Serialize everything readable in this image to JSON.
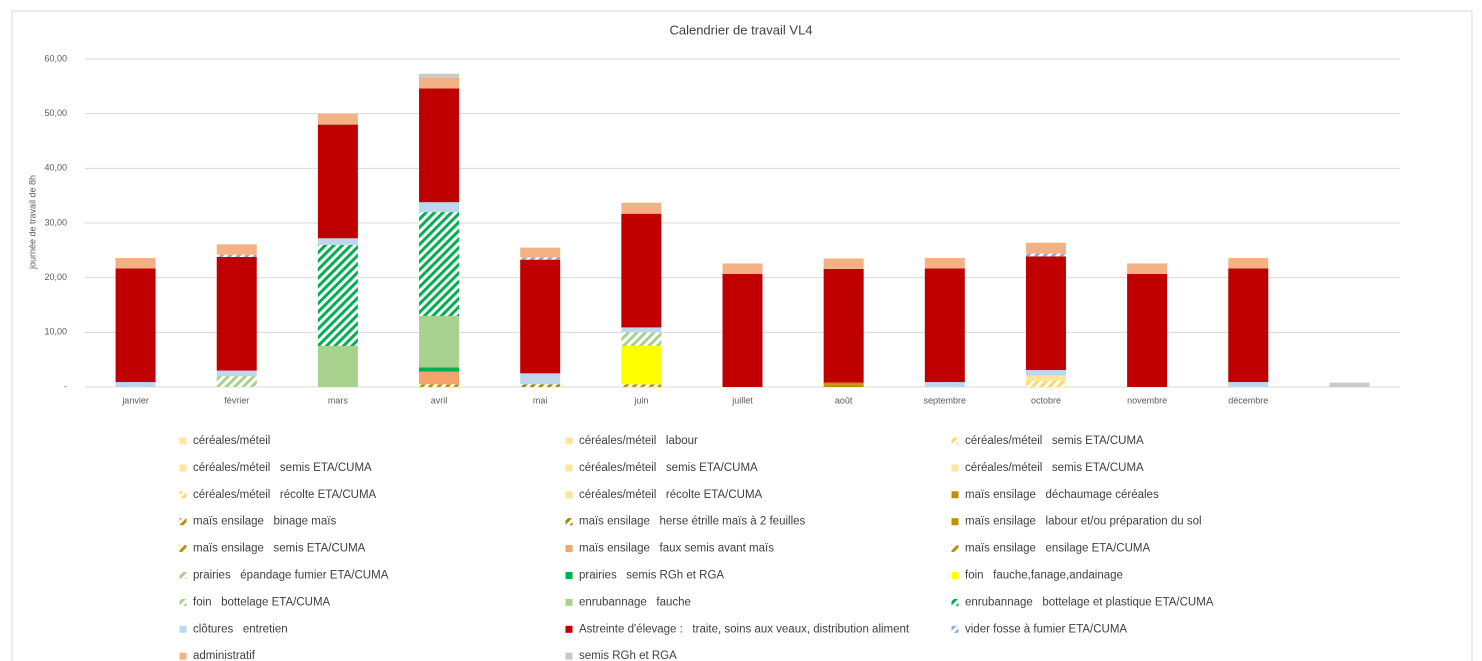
{
  "chart_data": {
    "type": "stacked_bar",
    "title": "Calendrier de travail VL4",
    "y_label": "journée de travail de 8h",
    "categories": [
      "janvier",
      "février",
      "mars",
      "avril",
      "mai",
      "juin",
      "juillet",
      "août",
      "septembre",
      "octobre",
      "novembre",
      "décembre",
      null
    ],
    "ylim": [
      0,
      60
    ],
    "yticks": [
      {
        "value": 0,
        "label": "-"
      },
      {
        "value": 10,
        "label": "10,00"
      },
      {
        "value": 20,
        "label": "20,00"
      },
      {
        "value": 30,
        "label": "30,00"
      },
      {
        "value": 40,
        "label": "40,00"
      },
      {
        "value": 50,
        "label": "50,00"
      },
      {
        "value": 60,
        "label": "60,00"
      }
    ],
    "grid": true,
    "legend": "bottom",
    "series": [
      {
        "name": "céréales/méteil",
        "color": "#ffe699",
        "hatch": false,
        "values": [
          0,
          0,
          0,
          0,
          0,
          0,
          0,
          0,
          0,
          0,
          0,
          0,
          0
        ]
      },
      {
        "name": "céréales/méteil   labour",
        "color": "#ffe699",
        "hatch": false,
        "values": [
          0,
          0,
          0,
          0,
          0,
          0,
          0,
          0,
          0,
          0,
          0,
          0,
          0
        ]
      },
      {
        "name": "céréales/méteil   semis ETA/CUMA",
        "color": "#ffd966",
        "hatch": true,
        "values": [
          0,
          0,
          0,
          0,
          0,
          0,
          0,
          0,
          0,
          1.1,
          0,
          0,
          0
        ]
      },
      {
        "name": "céréales/méteil   semis ETA/CUMA",
        "color": "#ffe699",
        "hatch": false,
        "values": [
          0,
          0,
          0,
          0,
          0,
          0,
          0,
          0,
          0,
          1.0,
          0,
          0,
          0
        ]
      },
      {
        "name": "céréales/méteil   semis ETA/CUMA",
        "color": "#ffe699",
        "hatch": false,
        "values": [
          0,
          0,
          0,
          0,
          0,
          0,
          0,
          0,
          0,
          0,
          0,
          0,
          0
        ]
      },
      {
        "name": "céréales/méteil   semis ETA/CUMA",
        "color": "#ffe699",
        "hatch": false,
        "values": [
          0,
          0,
          0,
          0,
          0,
          0,
          0,
          0,
          0,
          0,
          0,
          0,
          0
        ]
      },
      {
        "name": "céréales/méteil   récolte ETA/CUMA",
        "color": "#ffd966",
        "hatch": true,
        "values": [
          0,
          0,
          0,
          0,
          0,
          0,
          0,
          0,
          0,
          0,
          0,
          0,
          0
        ]
      },
      {
        "name": "céréales/méteil   récolte ETA/CUMA",
        "color": "#ffe699",
        "hatch": false,
        "values": [
          0,
          0,
          0,
          0,
          0,
          0,
          0,
          0,
          0,
          0,
          0,
          0,
          0
        ]
      },
      {
        "name": "maïs ensilage   déchaumage céréales",
        "color": "#bf9000",
        "hatch": false,
        "values": [
          0,
          0,
          0,
          0,
          0,
          0,
          0,
          0.5,
          0,
          0,
          0,
          0,
          0
        ]
      },
      {
        "name": "maïs ensilage   binage maïs",
        "color": "#bf9000",
        "hatch": true,
        "values": [
          0,
          0,
          0,
          0,
          0,
          0.5,
          0,
          0,
          0,
          0,
          0,
          0,
          0
        ]
      },
      {
        "name": "maïs ensilage   herse étrille maïs à 2 feuilles",
        "color": "#9a8a00",
        "hatch": true,
        "values": [
          0,
          0,
          0,
          0,
          0.5,
          0,
          0,
          0,
          0,
          0,
          0,
          0,
          0
        ]
      },
      {
        "name": "maïs ensilage   labour et/ou préparation du sol",
        "color": "#bf9000",
        "hatch": false,
        "values": [
          0,
          0,
          0,
          0,
          0,
          0,
          0,
          0.3,
          0,
          0,
          0,
          0,
          0
        ]
      },
      {
        "name": "maïs ensilage   semis ETA/CUMA",
        "color": "#bf9000",
        "hatch": true,
        "values": [
          0,
          0,
          0,
          0.5,
          0,
          0,
          0,
          0,
          0,
          0,
          0,
          0,
          0
        ]
      },
      {
        "name": "maïs ensilage   faux semis avant maïs",
        "color": "#f4a46b",
        "hatch": false,
        "values": [
          0,
          0,
          0,
          2.3,
          0,
          0,
          0,
          0,
          0,
          0,
          0,
          0,
          0
        ]
      },
      {
        "name": "maïs ensilage   ensilage ETA/CUMA",
        "color": "#bf9000",
        "hatch": true,
        "values": [
          0,
          0,
          0,
          0,
          0,
          0,
          0,
          0,
          0,
          0,
          0,
          0,
          0
        ]
      },
      {
        "name": "prairies   épandage fumier ETA/CUMA",
        "color": "#a9d18e",
        "hatch": true,
        "values": [
          0,
          2.0,
          0,
          0,
          0,
          0,
          0,
          0,
          0,
          0,
          0,
          0,
          0
        ]
      },
      {
        "name": "prairies   semis RGh et RGA",
        "color": "#00b050",
        "hatch": false,
        "values": [
          0,
          0,
          0,
          0.8,
          0,
          0,
          0,
          0,
          0,
          0,
          0,
          0,
          0
        ]
      },
      {
        "name": "foin   fauche,fanage,andainage",
        "color": "#ffff00",
        "hatch": false,
        "values": [
          0,
          0,
          0,
          0,
          0,
          7.0,
          0,
          0,
          0,
          0,
          0,
          0,
          0
        ]
      },
      {
        "name": "foin   bottelage ETA/CUMA",
        "color": "#a9d18e",
        "hatch": true,
        "values": [
          0,
          0,
          0,
          0,
          0,
          2.5,
          0,
          0,
          0,
          0,
          0,
          0,
          0
        ]
      },
      {
        "name": "enrubannage   fauche",
        "color": "#a9d18e",
        "hatch": false,
        "values": [
          0,
          0,
          7.5,
          9.4,
          0,
          0,
          0,
          0,
          0,
          0,
          0,
          0,
          0
        ]
      },
      {
        "name": "enrubannage   bottelage et plastique ETA/CUMA",
        "color": "#00b050",
        "hatch": true,
        "values": [
          0,
          0,
          18.5,
          19.0,
          0,
          0,
          0,
          0,
          0,
          0,
          0,
          0,
          0
        ]
      },
      {
        "name": "clôtures   entretien",
        "color": "#bdd7ee",
        "hatch": false,
        "values": [
          0.9,
          1.0,
          1.2,
          1.8,
          2.0,
          0.9,
          0,
          0,
          0.9,
          1.0,
          0,
          0.9,
          0
        ]
      },
      {
        "name": "Astreinte d'élevage :   traite, soins aux veaux, distribution aliment",
        "color": "#c00000",
        "hatch": false,
        "values": [
          20.8,
          20.8,
          20.8,
          20.8,
          20.8,
          20.8,
          20.7,
          20.8,
          20.8,
          20.8,
          20.7,
          20.8,
          0
        ]
      },
      {
        "name": "vider fosse à fumier ETA/CUMA",
        "color": "#8faadc",
        "hatch": true,
        "values": [
          0,
          0.4,
          0,
          0,
          0.4,
          0,
          0,
          0,
          0,
          0.5,
          0,
          0,
          0
        ]
      },
      {
        "name": "administratif",
        "color": "#f4b183",
        "hatch": false,
        "values": [
          1.9,
          1.9,
          2.0,
          2.0,
          1.8,
          2.0,
          1.9,
          1.9,
          1.9,
          2.0,
          1.9,
          1.9,
          0
        ]
      },
      {
        "name": "semis RGh et RGA",
        "color": "#c9c9c9",
        "hatch": false,
        "values": [
          0,
          0,
          0,
          0.7,
          0,
          0,
          0,
          0,
          0,
          0,
          0,
          0,
          0.8
        ]
      }
    ]
  }
}
